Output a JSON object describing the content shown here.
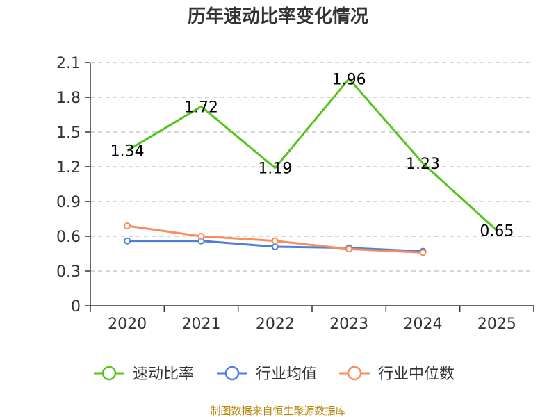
{
  "chart_data": {
    "type": "line",
    "title": "历年速动比率变化情况",
    "categories": [
      "2020",
      "2021",
      "2022",
      "2023",
      "2024",
      "2025"
    ],
    "ylim": [
      0,
      2.1
    ],
    "yticks": [
      "0",
      "0.3",
      "0.6",
      "0.9",
      "1.2",
      "1.5",
      "1.8",
      "2.1"
    ],
    "grid": true,
    "legend_position": "bottom",
    "series": [
      {
        "name": "速动比率",
        "color": "#52c41a",
        "values": [
          1.34,
          1.72,
          1.19,
          1.96,
          1.23,
          0.65
        ],
        "labels": [
          "1.34",
          "1.72",
          "1.19",
          "1.96",
          "1.23",
          "0.65"
        ]
      },
      {
        "name": "行业均值",
        "color": "#4a7fde",
        "values": [
          0.56,
          0.56,
          0.51,
          0.5,
          0.47,
          null
        ]
      },
      {
        "name": "行业中位数",
        "color": "#fa8c5a",
        "values": [
          0.69,
          0.6,
          0.56,
          0.49,
          0.46,
          null
        ]
      }
    ]
  },
  "source": "制图数据来自恒生聚源数据库"
}
